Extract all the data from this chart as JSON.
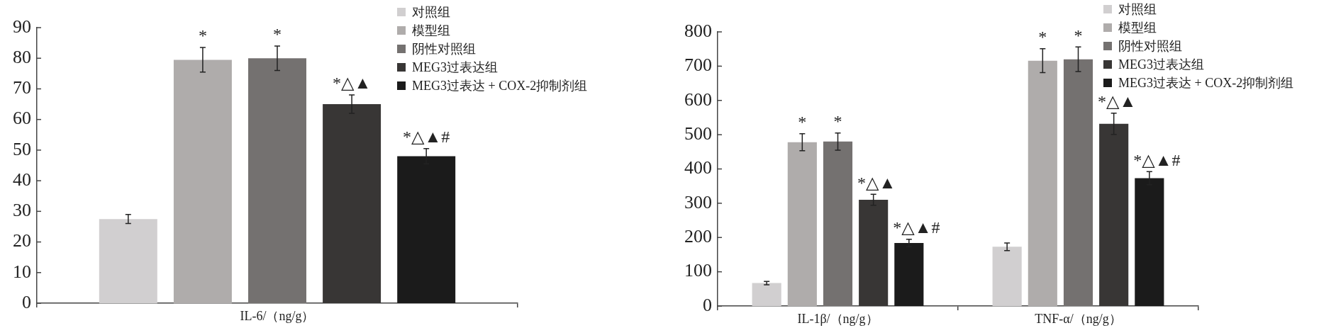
{
  "chart_data": [
    {
      "type": "bar",
      "categories": [
        "IL-6/（ng/g）"
      ],
      "ylim": [
        0,
        90
      ],
      "yticks": [
        0,
        10,
        20,
        30,
        40,
        50,
        60,
        70,
        80,
        90
      ],
      "legend": "top right",
      "series": [
        {
          "name": "对照组",
          "color": "#d1cfd0",
          "values": [
            27.5
          ],
          "errors": [
            1.5
          ]
        },
        {
          "name": "模型组",
          "color": "#afacab",
          "values": [
            79.5
          ],
          "errors": [
            4
          ],
          "value_labels": [
            "*"
          ]
        },
        {
          "name": "阴性对照组",
          "color": "#747170",
          "values": [
            80
          ],
          "errors": [
            4
          ],
          "value_labels": [
            "*"
          ]
        },
        {
          "name": "MEG3过表达组",
          "color": "#383635",
          "values": [
            65
          ],
          "errors": [
            3
          ],
          "value_labels": [
            "*△▲"
          ]
        },
        {
          "name": "MEG3过表达 + COX-2抑制剂组",
          "color": "#1b1b1b",
          "values": [
            48
          ],
          "errors": [
            2.5
          ],
          "value_labels": [
            "*△▲#"
          ]
        }
      ]
    },
    {
      "type": "bar",
      "categories": [
        "IL-1β/（ng/g）",
        "TNF-α/（ng/g）"
      ],
      "ylim": [
        0,
        800
      ],
      "yticks": [
        0,
        100,
        200,
        300,
        400,
        500,
        600,
        700,
        800
      ],
      "legend": "top right",
      "series": [
        {
          "name": "对照组",
          "color": "#d1cfd0",
          "values": [
            67,
            173
          ],
          "errors": [
            5,
            11
          ]
        },
        {
          "name": "模型组",
          "color": "#afacab",
          "values": [
            478,
            716
          ],
          "errors": [
            25,
            35
          ],
          "value_labels": [
            "*",
            "*"
          ]
        },
        {
          "name": "阴性对照组",
          "color": "#747170",
          "values": [
            480,
            720
          ],
          "errors": [
            25,
            36
          ],
          "value_labels": [
            "*",
            "*"
          ]
        },
        {
          "name": "MEG3过表达组",
          "color": "#383635",
          "values": [
            310,
            532
          ],
          "errors": [
            16,
            31
          ],
          "value_labels": [
            "*△▲",
            "*△▲"
          ]
        },
        {
          "name": "MEG3过表达 + COX-2抑制剂组",
          "color": "#1b1b1b",
          "values": [
            184,
            373
          ],
          "errors": [
            11,
            19
          ],
          "value_labels": [
            "*△▲#",
            "*△▲#"
          ]
        }
      ]
    }
  ]
}
